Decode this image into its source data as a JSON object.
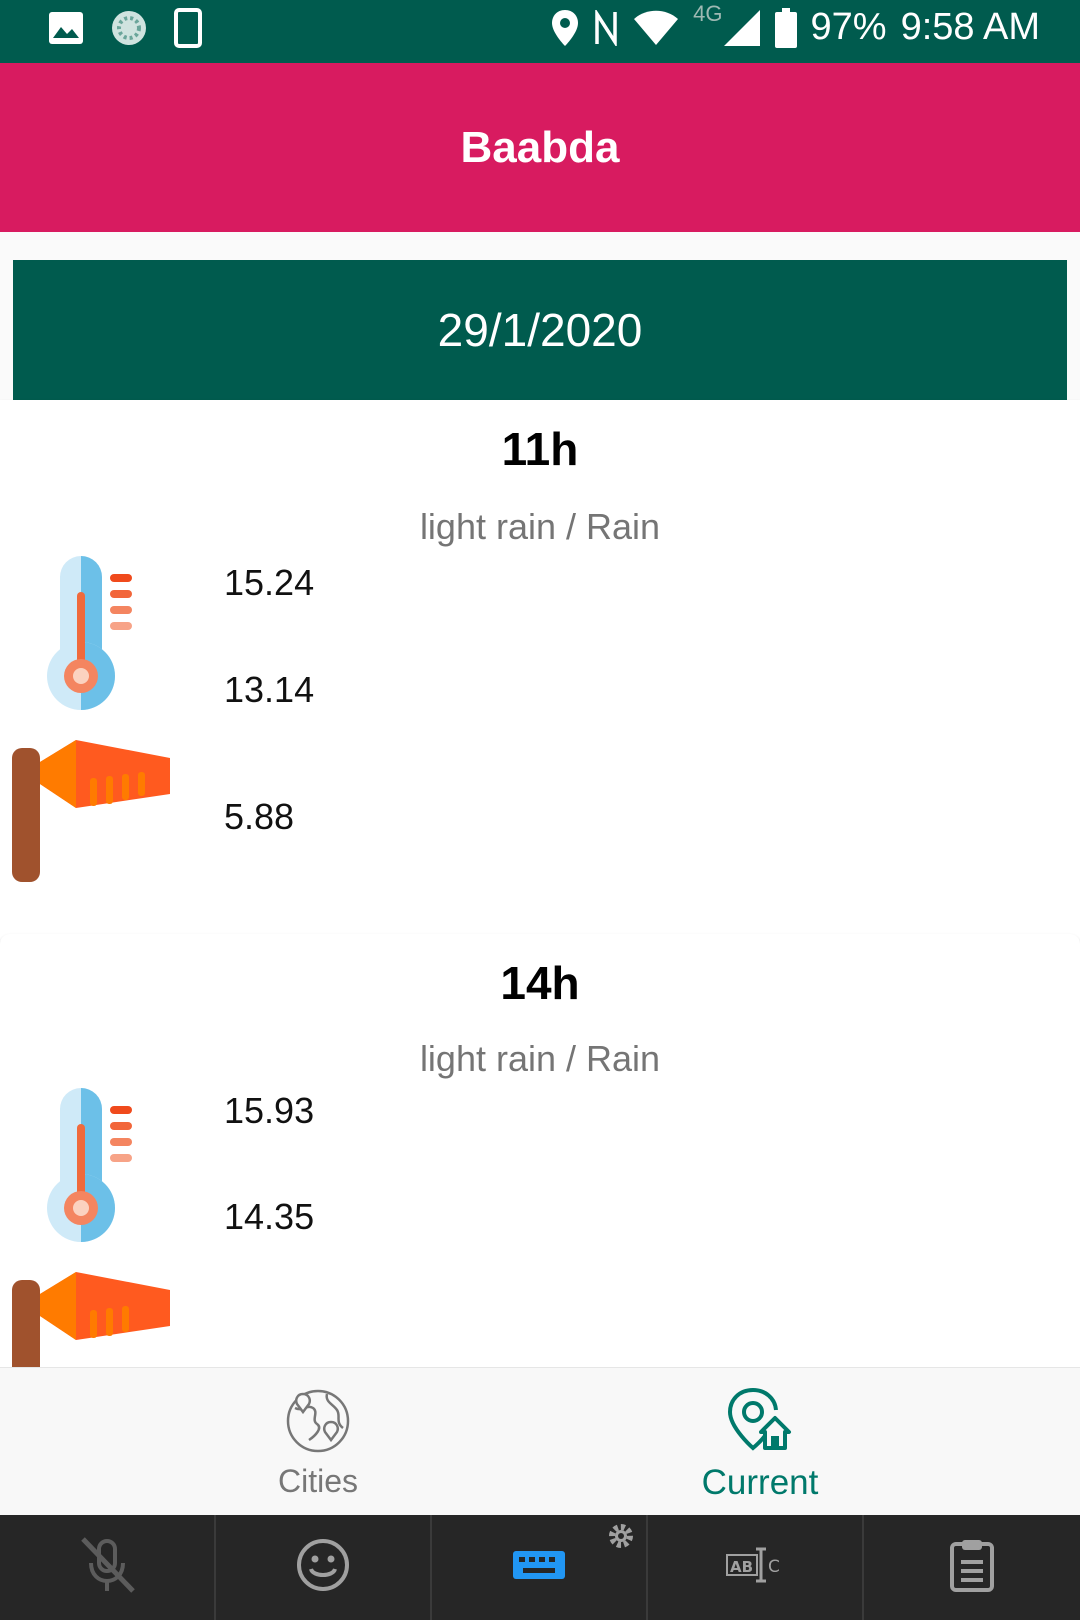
{
  "status_bar": {
    "icons_left": [
      "image-icon",
      "sync-icon",
      "phone-icon"
    ],
    "icons_right": [
      "location-icon",
      "nfc-icon",
      "wifi-icon",
      "signal-icon",
      "battery-icon"
    ],
    "network": "4G",
    "battery": "97%",
    "time": "9:58 AM"
  },
  "app_bar": {
    "title": "Baabda"
  },
  "date": "29/1/2020",
  "forecasts": [
    {
      "hour": "11h",
      "description": "light rain / Rain",
      "temp_max": "15.24",
      "temp_min": "13.14",
      "wind": "5.88"
    },
    {
      "hour": "14h",
      "description": "light rain / Rain",
      "temp_max": "15.93",
      "temp_min": "14.35"
    }
  ],
  "bottom_nav": {
    "items": [
      {
        "label": "Cities",
        "icon": "globe-icon",
        "active": false
      },
      {
        "label": "Current",
        "icon": "location-home-icon",
        "active": true
      }
    ]
  },
  "keyboard_bar": {
    "keys": [
      "mic-off-icon",
      "emoji-icon",
      "keyboard-icon",
      "text-select-icon",
      "clipboard-icon"
    ]
  },
  "colors": {
    "status_bar": "#005b4e",
    "app_bar": "#d81b60",
    "date_header": "#005b4e",
    "active_nav": "#00796b",
    "keyboard_bar": "#262626"
  }
}
